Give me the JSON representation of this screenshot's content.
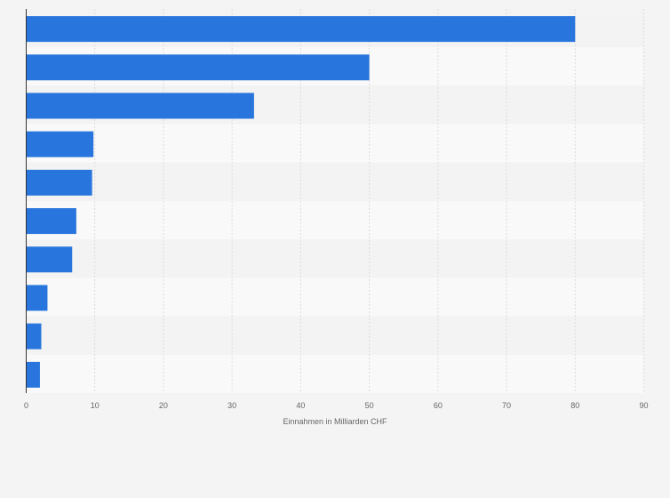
{
  "chart_data": {
    "type": "bar",
    "orientation": "horizontal",
    "categories": [
      "",
      "",
      "",
      "",
      "",
      "",
      "",
      "",
      "",
      ""
    ],
    "values": [
      80,
      50,
      33.2,
      9.8,
      9.6,
      7.3,
      6.7,
      3.1,
      2.2,
      2.0
    ],
    "xlabel": "Einnahmen in Milliarden CHF",
    "ylabel": "",
    "xlim": [
      0,
      90
    ],
    "xticks": [
      "0",
      "10",
      "20",
      "30",
      "40",
      "50",
      "60",
      "70",
      "80",
      "90"
    ],
    "grid": true,
    "legend": "none",
    "colors": {
      "bar": "#2876dd",
      "background": "#f4f4f4",
      "band_dark": "#f3f3f3",
      "band_light": "#f9f9f9",
      "gridline": "#dcdcdc",
      "axis": "#333333",
      "text": "#666666"
    }
  }
}
